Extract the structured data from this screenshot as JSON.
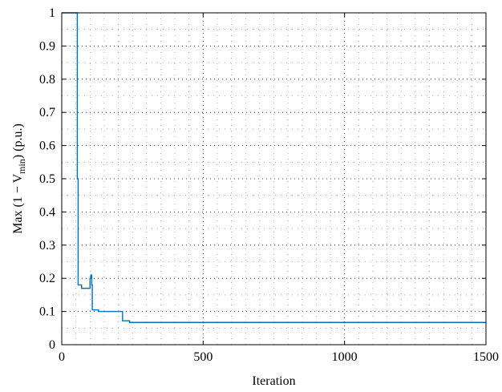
{
  "chart_data": {
    "type": "line",
    "xlabel": "Iteration",
    "ylabel": "Max (1 − V",
    "ylabel_sub": "min",
    "ylabel_suffix": ") (p.u.)",
    "xlim": [
      0,
      1500
    ],
    "ylim": [
      0,
      1
    ],
    "xticks": [
      0,
      500,
      1000,
      1500
    ],
    "yticks": [
      0,
      0.1,
      0.2,
      0.3,
      0.4,
      0.5,
      0.6,
      0.7,
      0.8,
      0.9,
      1
    ],
    "xtick_labels": [
      "0",
      "500",
      "1000",
      "1500"
    ],
    "ytick_labels": [
      "0",
      "0.1",
      "0.2",
      "0.3",
      "0.4",
      "0.5",
      "0.6",
      "0.7",
      "0.8",
      "0.9",
      "1"
    ],
    "grid": true,
    "line_color": "#0072BD",
    "series": [
      {
        "x": [
          0,
          55,
          55,
          58,
          58,
          70,
          70,
          100,
          100,
          103,
          103,
          106,
          106,
          108,
          108,
          130,
          130,
          215,
          215,
          240,
          240,
          1500
        ],
        "y": [
          1,
          1,
          0.5,
          0.5,
          0.18,
          0.18,
          0.17,
          0.17,
          0.2,
          0.2,
          0.21,
          0.21,
          0.18,
          0.18,
          0.105,
          0.105,
          0.1,
          0.1,
          0.072,
          0.072,
          0.067,
          0.067
        ]
      }
    ]
  }
}
